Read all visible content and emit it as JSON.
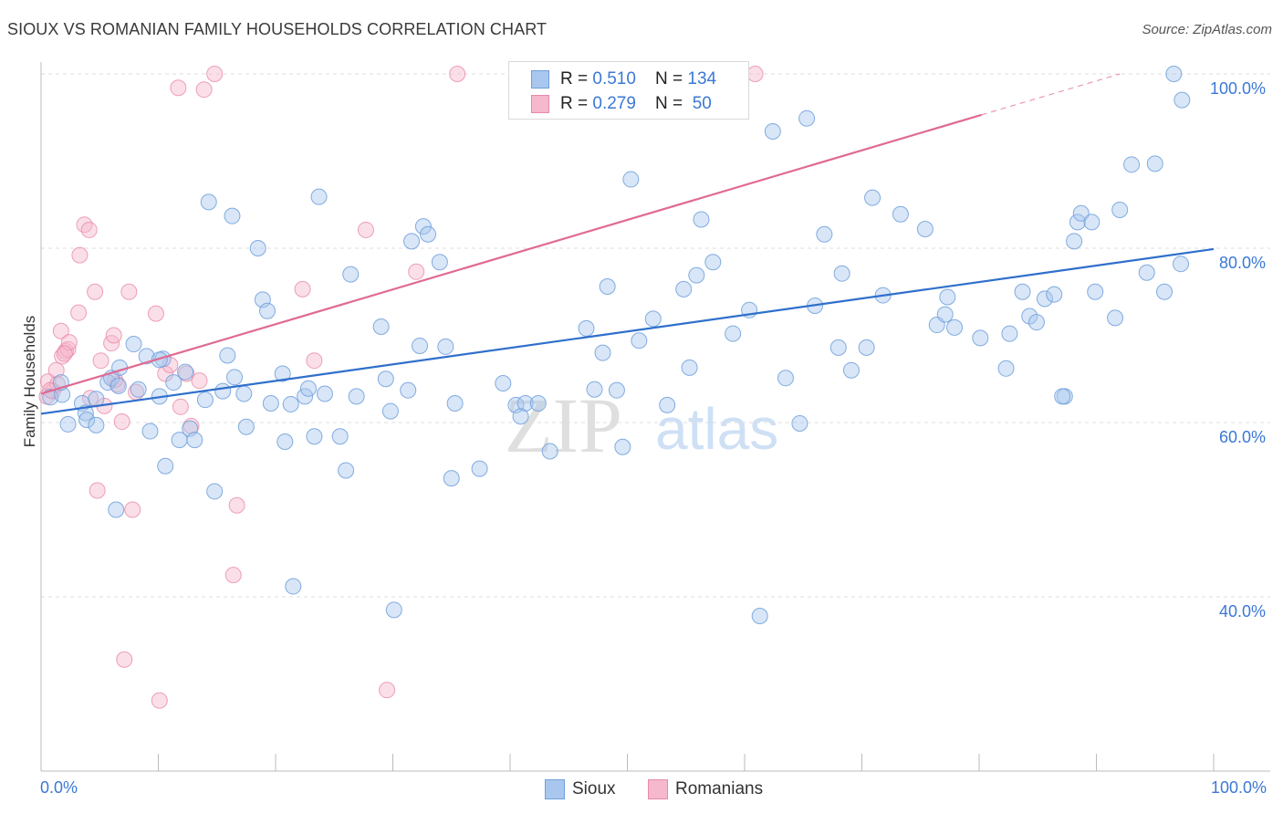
{
  "header": {
    "title": "SIOUX VS ROMANIAN FAMILY HOUSEHOLDS CORRELATION CHART",
    "source": "Source: ZipAtlas.com"
  },
  "watermark": {
    "zip": "ZIP",
    "atlas": "atlas"
  },
  "colors": {
    "sioux_fill": "#a9c7ee",
    "sioux_stroke": "#6f9fdc",
    "sioux_line": "#2f6fcc",
    "romanian_fill": "#f6b8cc",
    "romanian_stroke": "#e88aa8",
    "romanian_line": "#e06a93",
    "tick_text": "#3b78d4"
  },
  "stats": {
    "sioux": {
      "r_label": "R = ",
      "r": "0.510",
      "n_label": "N = ",
      "n": "134"
    },
    "romanians": {
      "r_label": "R = ",
      "r": "0.279",
      "n_label": "N = ",
      "n": " 50"
    }
  },
  "legend": {
    "sioux": "Sioux",
    "romanians": "Romanians"
  },
  "chart_data": {
    "type": "scatter",
    "xlabel": "",
    "ylabel": "Family Households",
    "xlim": [
      0,
      100
    ],
    "ylim": [
      20,
      102
    ],
    "x_tick_labels": [
      "0.0%",
      "100.0%"
    ],
    "y_ticks": [
      40,
      60,
      80,
      100
    ],
    "y_tick_labels": [
      "40.0%",
      "60.0%",
      "80.0%",
      "100.0%"
    ],
    "grid": "horizontal dashed",
    "legend_position": "bottom-center",
    "series": [
      {
        "name": "Sioux",
        "trend": {
          "x": [
            0,
            100
          ],
          "y": [
            61.0,
            79.9
          ]
        },
        "points": [
          [
            0.8,
            62.9
          ],
          [
            1.8,
            63.2
          ],
          [
            1.7,
            64.6
          ],
          [
            3.5,
            62.2
          ],
          [
            3.8,
            61.1
          ],
          [
            2.3,
            59.8
          ],
          [
            3.9,
            60.3
          ],
          [
            4.7,
            59.7
          ],
          [
            4.7,
            62.7
          ],
          [
            5.7,
            64.6
          ],
          [
            6.0,
            65.1
          ],
          [
            6.6,
            64.2
          ],
          [
            6.4,
            50.0
          ],
          [
            6.7,
            66.3
          ],
          [
            7.9,
            69.0
          ],
          [
            8.3,
            63.8
          ],
          [
            9.0,
            67.6
          ],
          [
            9.3,
            59.0
          ],
          [
            10.1,
            63.0
          ],
          [
            10.6,
            55.0
          ],
          [
            10.4,
            67.3
          ],
          [
            11.3,
            64.6
          ],
          [
            11.8,
            58.0
          ],
          [
            12.3,
            65.8
          ],
          [
            12.7,
            59.3
          ],
          [
            13.1,
            58.0
          ],
          [
            14.0,
            62.6
          ],
          [
            14.3,
            85.3
          ],
          [
            14.8,
            52.1
          ],
          [
            15.5,
            63.6
          ],
          [
            15.9,
            67.7
          ],
          [
            16.3,
            83.7
          ],
          [
            16.5,
            65.2
          ],
          [
            17.3,
            63.3
          ],
          [
            17.5,
            59.5
          ],
          [
            18.5,
            80.0
          ],
          [
            18.9,
            74.1
          ],
          [
            19.3,
            72.8
          ],
          [
            19.6,
            62.2
          ],
          [
            20.6,
            65.6
          ],
          [
            20.8,
            57.8
          ],
          [
            21.3,
            62.1
          ],
          [
            21.5,
            41.2
          ],
          [
            22.5,
            63.0
          ],
          [
            22.8,
            63.9
          ],
          [
            23.3,
            58.4
          ],
          [
            23.7,
            85.9
          ],
          [
            24.2,
            63.3
          ],
          [
            25.5,
            58.4
          ],
          [
            26.0,
            54.5
          ],
          [
            26.4,
            77.0
          ],
          [
            26.9,
            63.0
          ],
          [
            29.0,
            71.0
          ],
          [
            29.4,
            65.0
          ],
          [
            29.8,
            61.3
          ],
          [
            30.1,
            38.5
          ],
          [
            31.3,
            63.7
          ],
          [
            31.6,
            80.8
          ],
          [
            32.3,
            68.8
          ],
          [
            32.6,
            82.5
          ],
          [
            33.0,
            81.6
          ],
          [
            34.0,
            78.4
          ],
          [
            34.5,
            68.7
          ],
          [
            35.0,
            53.6
          ],
          [
            35.3,
            62.2
          ],
          [
            37.4,
            54.7
          ],
          [
            39.4,
            64.5
          ],
          [
            40.5,
            62.0
          ],
          [
            41.3,
            62.2
          ],
          [
            40.9,
            60.7
          ],
          [
            42.4,
            62.2
          ],
          [
            43.4,
            56.7
          ],
          [
            43.4,
            100.0
          ],
          [
            46.5,
            70.8
          ],
          [
            47.2,
            63.8
          ],
          [
            47.9,
            68.0
          ],
          [
            48.3,
            75.6
          ],
          [
            49.1,
            63.7
          ],
          [
            49.6,
            57.2
          ],
          [
            50.3,
            87.9
          ],
          [
            51.0,
            69.4
          ],
          [
            52.2,
            71.9
          ],
          [
            53.4,
            62.0
          ],
          [
            54.8,
            75.3
          ],
          [
            55.3,
            66.3
          ],
          [
            55.9,
            76.9
          ],
          [
            56.3,
            83.3
          ],
          [
            57.3,
            78.4
          ],
          [
            59.0,
            70.2
          ],
          [
            60.4,
            72.9
          ],
          [
            61.3,
            37.8
          ],
          [
            62.4,
            93.4
          ],
          [
            63.5,
            65.1
          ],
          [
            64.7,
            59.9
          ],
          [
            65.3,
            94.9
          ],
          [
            66.0,
            73.4
          ],
          [
            66.8,
            81.6
          ],
          [
            68.0,
            68.6
          ],
          [
            68.3,
            77.1
          ],
          [
            69.1,
            66.0
          ],
          [
            70.4,
            68.6
          ],
          [
            70.9,
            85.8
          ],
          [
            71.8,
            74.6
          ],
          [
            73.3,
            83.9
          ],
          [
            75.4,
            82.2
          ],
          [
            76.4,
            71.2
          ],
          [
            77.1,
            72.4
          ],
          [
            77.3,
            74.4
          ],
          [
            77.9,
            70.9
          ],
          [
            80.1,
            69.7
          ],
          [
            82.3,
            66.2
          ],
          [
            82.6,
            70.2
          ],
          [
            83.7,
            75.0
          ],
          [
            84.3,
            72.2
          ],
          [
            84.9,
            71.5
          ],
          [
            85.6,
            74.2
          ],
          [
            86.4,
            74.7
          ],
          [
            87.3,
            63.0
          ],
          [
            88.1,
            80.8
          ],
          [
            88.4,
            83.0
          ],
          [
            88.7,
            84.0
          ],
          [
            89.6,
            83.0
          ],
          [
            89.9,
            75.0
          ],
          [
            91.6,
            72.0
          ],
          [
            92.0,
            84.4
          ],
          [
            93.0,
            89.6
          ],
          [
            94.3,
            77.2
          ],
          [
            95.0,
            89.7
          ],
          [
            95.8,
            75.0
          ],
          [
            96.6,
            100.0
          ],
          [
            97.2,
            78.2
          ],
          [
            97.3,
            97.0
          ],
          [
            87.1,
            63.0
          ],
          [
            10.1,
            67.2
          ]
        ]
      },
      {
        "name": "Romanians",
        "trend": {
          "x": [
            0,
            80.2
          ],
          "y": [
            63.3,
            95.3
          ]
        },
        "trend_dashed": {
          "x": [
            80.2,
            92.0
          ],
          "y": [
            95.3,
            100.0
          ]
        },
        "points": [
          [
            0.5,
            63.0
          ],
          [
            0.6,
            64.7
          ],
          [
            1.0,
            63.6
          ],
          [
            1.3,
            66.0
          ],
          [
            1.4,
            64.4
          ],
          [
            1.7,
            70.5
          ],
          [
            1.8,
            67.6
          ],
          [
            2.1,
            68.2
          ],
          [
            2.3,
            68.4
          ],
          [
            2.4,
            69.2
          ],
          [
            3.3,
            79.2
          ],
          [
            3.2,
            72.6
          ],
          [
            3.7,
            82.7
          ],
          [
            4.1,
            82.1
          ],
          [
            4.2,
            62.8
          ],
          [
            4.6,
            75.0
          ],
          [
            4.8,
            52.2
          ],
          [
            5.1,
            67.1
          ],
          [
            5.4,
            61.9
          ],
          [
            6.0,
            69.1
          ],
          [
            6.2,
            70.0
          ],
          [
            6.5,
            64.4
          ],
          [
            6.9,
            60.1
          ],
          [
            7.1,
            32.8
          ],
          [
            7.5,
            75.0
          ],
          [
            7.8,
            50.0
          ],
          [
            8.1,
            63.5
          ],
          [
            9.8,
            72.5
          ],
          [
            10.1,
            28.1
          ],
          [
            10.6,
            65.6
          ],
          [
            11.0,
            66.6
          ],
          [
            11.7,
            98.4
          ],
          [
            11.9,
            61.8
          ],
          [
            12.4,
            65.6
          ],
          [
            12.8,
            59.6
          ],
          [
            13.5,
            64.8
          ],
          [
            13.9,
            98.2
          ],
          [
            14.8,
            100.0
          ],
          [
            16.4,
            42.5
          ],
          [
            16.7,
            50.5
          ],
          [
            22.3,
            75.3
          ],
          [
            23.3,
            67.1
          ],
          [
            27.7,
            82.1
          ],
          [
            29.5,
            29.3
          ],
          [
            32.0,
            77.3
          ],
          [
            35.5,
            100.0
          ],
          [
            60.9,
            100.0
          ],
          [
            6.3,
            64.9
          ],
          [
            0.8,
            63.7
          ],
          [
            2.0,
            67.9
          ]
        ]
      }
    ]
  }
}
